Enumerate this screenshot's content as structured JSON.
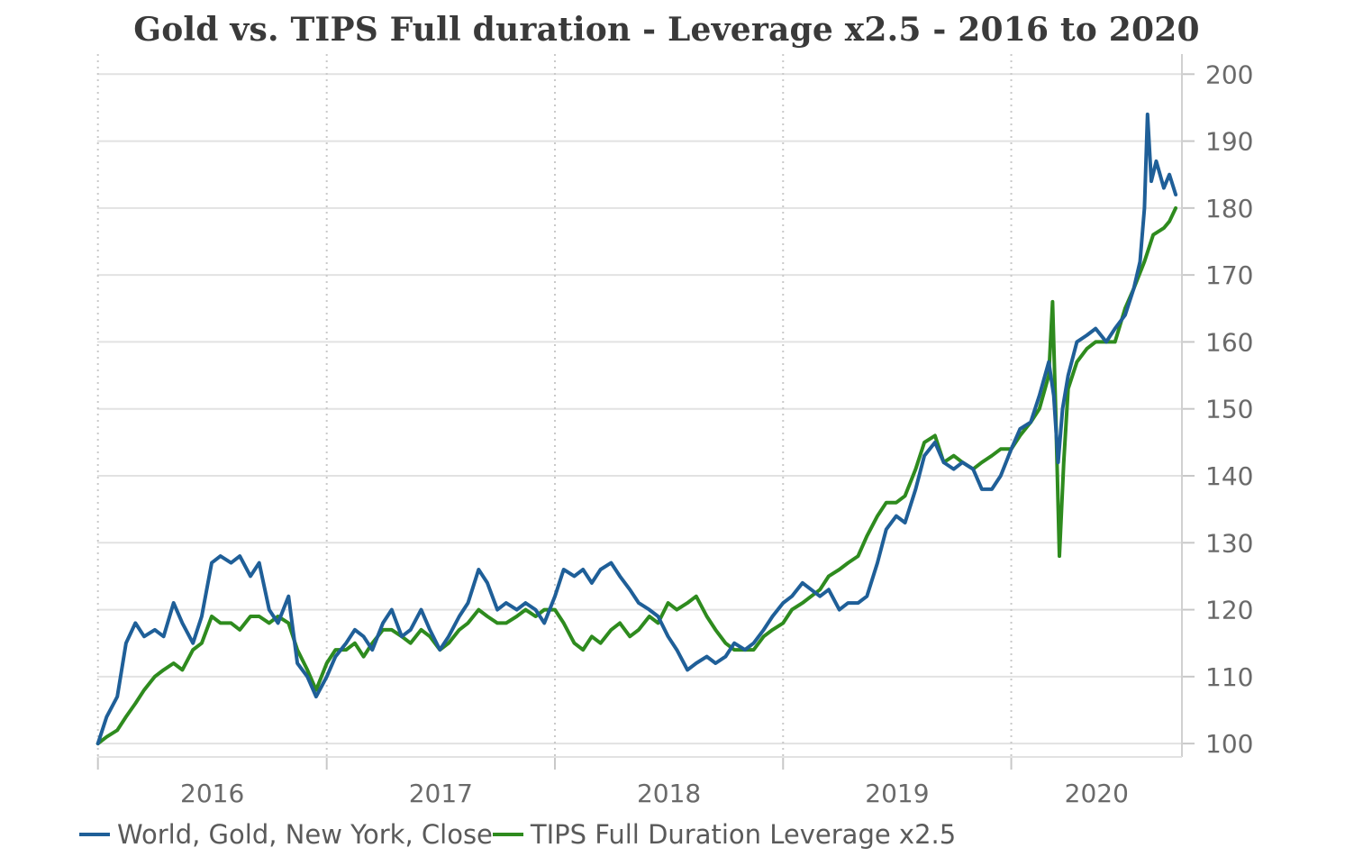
{
  "chart_data": {
    "type": "line",
    "title": "Gold vs. TIPS Full duration - Leverage x2.5 - 2016 to 2020",
    "xlabel": "",
    "ylabel": "",
    "x_tick_labels": [
      "2016",
      "2017",
      "2018",
      "2019",
      "2020"
    ],
    "y_ticks": [
      100,
      110,
      120,
      130,
      140,
      150,
      160,
      170,
      180,
      190,
      200
    ],
    "ylim": [
      98,
      203
    ],
    "xlim": [
      "2015-12-31",
      "2020-09-30"
    ],
    "grid": true,
    "y_axis_side": "right",
    "legend_position": "bottom-left",
    "series": [
      {
        "name": "World, Gold, New York, Close",
        "color": "#1f5f98",
        "points": [
          [
            "2016-01-01",
            100
          ],
          [
            "2016-01-15",
            104
          ],
          [
            "2016-02-01",
            107
          ],
          [
            "2016-02-15",
            115
          ],
          [
            "2016-03-01",
            118
          ],
          [
            "2016-03-15",
            116
          ],
          [
            "2016-04-01",
            117
          ],
          [
            "2016-04-15",
            116
          ],
          [
            "2016-05-01",
            121
          ],
          [
            "2016-05-15",
            118
          ],
          [
            "2016-06-01",
            115
          ],
          [
            "2016-06-15",
            119
          ],
          [
            "2016-07-01",
            127
          ],
          [
            "2016-07-15",
            128
          ],
          [
            "2016-08-01",
            127
          ],
          [
            "2016-08-15",
            128
          ],
          [
            "2016-09-01",
            125
          ],
          [
            "2016-09-15",
            127
          ],
          [
            "2016-10-01",
            120
          ],
          [
            "2016-10-15",
            118
          ],
          [
            "2016-11-01",
            122
          ],
          [
            "2016-11-15",
            112
          ],
          [
            "2016-12-01",
            110
          ],
          [
            "2016-12-15",
            107
          ],
          [
            "2017-01-01",
            110
          ],
          [
            "2017-01-15",
            113
          ],
          [
            "2017-02-01",
            115
          ],
          [
            "2017-02-15",
            117
          ],
          [
            "2017-03-01",
            116
          ],
          [
            "2017-03-15",
            114
          ],
          [
            "2017-04-01",
            118
          ],
          [
            "2017-04-15",
            120
          ],
          [
            "2017-05-01",
            116
          ],
          [
            "2017-05-15",
            117
          ],
          [
            "2017-06-01",
            120
          ],
          [
            "2017-06-15",
            117
          ],
          [
            "2017-07-01",
            114
          ],
          [
            "2017-07-15",
            116
          ],
          [
            "2017-08-01",
            119
          ],
          [
            "2017-08-15",
            121
          ],
          [
            "2017-09-01",
            126
          ],
          [
            "2017-09-15",
            124
          ],
          [
            "2017-10-01",
            120
          ],
          [
            "2017-10-15",
            121
          ],
          [
            "2017-11-01",
            120
          ],
          [
            "2017-11-15",
            121
          ],
          [
            "2017-12-01",
            120
          ],
          [
            "2017-12-15",
            118
          ],
          [
            "2018-01-01",
            122
          ],
          [
            "2018-01-15",
            126
          ],
          [
            "2018-02-01",
            125
          ],
          [
            "2018-02-15",
            126
          ],
          [
            "2018-03-01",
            124
          ],
          [
            "2018-03-15",
            126
          ],
          [
            "2018-04-01",
            127
          ],
          [
            "2018-04-15",
            125
          ],
          [
            "2018-05-01",
            123
          ],
          [
            "2018-05-15",
            121
          ],
          [
            "2018-06-01",
            120
          ],
          [
            "2018-06-15",
            119
          ],
          [
            "2018-07-01",
            116
          ],
          [
            "2018-07-15",
            114
          ],
          [
            "2018-08-01",
            111
          ],
          [
            "2018-08-15",
            112
          ],
          [
            "2018-09-01",
            113
          ],
          [
            "2018-09-15",
            112
          ],
          [
            "2018-10-01",
            113
          ],
          [
            "2018-10-15",
            115
          ],
          [
            "2018-11-01",
            114
          ],
          [
            "2018-11-15",
            115
          ],
          [
            "2018-12-01",
            117
          ],
          [
            "2018-12-15",
            119
          ],
          [
            "2019-01-01",
            121
          ],
          [
            "2019-01-15",
            122
          ],
          [
            "2019-02-01",
            124
          ],
          [
            "2019-02-15",
            123
          ],
          [
            "2019-03-01",
            122
          ],
          [
            "2019-03-15",
            123
          ],
          [
            "2019-04-01",
            120
          ],
          [
            "2019-04-15",
            121
          ],
          [
            "2019-05-01",
            121
          ],
          [
            "2019-05-15",
            122
          ],
          [
            "2019-06-01",
            127
          ],
          [
            "2019-06-15",
            132
          ],
          [
            "2019-07-01",
            134
          ],
          [
            "2019-07-15",
            133
          ],
          [
            "2019-08-01",
            138
          ],
          [
            "2019-08-15",
            143
          ],
          [
            "2019-09-01",
            145
          ],
          [
            "2019-09-15",
            142
          ],
          [
            "2019-10-01",
            141
          ],
          [
            "2019-10-15",
            142
          ],
          [
            "2019-11-01",
            141
          ],
          [
            "2019-11-15",
            138
          ],
          [
            "2019-12-01",
            138
          ],
          [
            "2019-12-15",
            140
          ],
          [
            "2020-01-01",
            144
          ],
          [
            "2020-01-15",
            147
          ],
          [
            "2020-02-01",
            148
          ],
          [
            "2020-02-15",
            152
          ],
          [
            "2020-03-01",
            157
          ],
          [
            "2020-03-09",
            152
          ],
          [
            "2020-03-16",
            142
          ],
          [
            "2020-03-23",
            150
          ],
          [
            "2020-04-01",
            155
          ],
          [
            "2020-04-15",
            160
          ],
          [
            "2020-05-01",
            161
          ],
          [
            "2020-05-15",
            162
          ],
          [
            "2020-06-01",
            160
          ],
          [
            "2020-06-15",
            162
          ],
          [
            "2020-07-01",
            164
          ],
          [
            "2020-07-15",
            168
          ],
          [
            "2020-07-25",
            172
          ],
          [
            "2020-08-01",
            180
          ],
          [
            "2020-08-06",
            194
          ],
          [
            "2020-08-12",
            184
          ],
          [
            "2020-08-20",
            187
          ],
          [
            "2020-09-01",
            183
          ],
          [
            "2020-09-10",
            185
          ],
          [
            "2020-09-20",
            182
          ]
        ]
      },
      {
        "name": "TIPS Full Duration Leverage x2.5",
        "color": "#2e8b1e",
        "points": [
          [
            "2016-01-01",
            100
          ],
          [
            "2016-01-15",
            101
          ],
          [
            "2016-02-01",
            102
          ],
          [
            "2016-02-15",
            104
          ],
          [
            "2016-03-01",
            106
          ],
          [
            "2016-03-15",
            108
          ],
          [
            "2016-04-01",
            110
          ],
          [
            "2016-04-15",
            111
          ],
          [
            "2016-05-01",
            112
          ],
          [
            "2016-05-15",
            111
          ],
          [
            "2016-06-01",
            114
          ],
          [
            "2016-06-15",
            115
          ],
          [
            "2016-07-01",
            119
          ],
          [
            "2016-07-15",
            118
          ],
          [
            "2016-08-01",
            118
          ],
          [
            "2016-08-15",
            117
          ],
          [
            "2016-09-01",
            119
          ],
          [
            "2016-09-15",
            119
          ],
          [
            "2016-10-01",
            118
          ],
          [
            "2016-10-15",
            119
          ],
          [
            "2016-11-01",
            118
          ],
          [
            "2016-11-15",
            114
          ],
          [
            "2016-12-01",
            111
          ],
          [
            "2016-12-15",
            108
          ],
          [
            "2017-01-01",
            112
          ],
          [
            "2017-01-15",
            114
          ],
          [
            "2017-02-01",
            114
          ],
          [
            "2017-02-15",
            115
          ],
          [
            "2017-03-01",
            113
          ],
          [
            "2017-03-15",
            115
          ],
          [
            "2017-04-01",
            117
          ],
          [
            "2017-04-15",
            117
          ],
          [
            "2017-05-01",
            116
          ],
          [
            "2017-05-15",
            115
          ],
          [
            "2017-06-01",
            117
          ],
          [
            "2017-06-15",
            116
          ],
          [
            "2017-07-01",
            114
          ],
          [
            "2017-07-15",
            115
          ],
          [
            "2017-08-01",
            117
          ],
          [
            "2017-08-15",
            118
          ],
          [
            "2017-09-01",
            120
          ],
          [
            "2017-09-15",
            119
          ],
          [
            "2017-10-01",
            118
          ],
          [
            "2017-10-15",
            118
          ],
          [
            "2017-11-01",
            119
          ],
          [
            "2017-11-15",
            120
          ],
          [
            "2017-12-01",
            119
          ],
          [
            "2017-12-15",
            120
          ],
          [
            "2018-01-01",
            120
          ],
          [
            "2018-01-15",
            118
          ],
          [
            "2018-02-01",
            115
          ],
          [
            "2018-02-15",
            114
          ],
          [
            "2018-03-01",
            116
          ],
          [
            "2018-03-15",
            115
          ],
          [
            "2018-04-01",
            117
          ],
          [
            "2018-04-15",
            118
          ],
          [
            "2018-05-01",
            116
          ],
          [
            "2018-05-15",
            117
          ],
          [
            "2018-06-01",
            119
          ],
          [
            "2018-06-15",
            118
          ],
          [
            "2018-07-01",
            121
          ],
          [
            "2018-07-15",
            120
          ],
          [
            "2018-08-01",
            121
          ],
          [
            "2018-08-15",
            122
          ],
          [
            "2018-09-01",
            119
          ],
          [
            "2018-09-15",
            117
          ],
          [
            "2018-10-01",
            115
          ],
          [
            "2018-10-15",
            114
          ],
          [
            "2018-11-01",
            114
          ],
          [
            "2018-11-15",
            114
          ],
          [
            "2018-12-01",
            116
          ],
          [
            "2018-12-15",
            117
          ],
          [
            "2019-01-01",
            118
          ],
          [
            "2019-01-15",
            120
          ],
          [
            "2019-02-01",
            121
          ],
          [
            "2019-02-15",
            122
          ],
          [
            "2019-03-01",
            123
          ],
          [
            "2019-03-15",
            125
          ],
          [
            "2019-04-01",
            126
          ],
          [
            "2019-04-15",
            127
          ],
          [
            "2019-05-01",
            128
          ],
          [
            "2019-05-15",
            131
          ],
          [
            "2019-06-01",
            134
          ],
          [
            "2019-06-15",
            136
          ],
          [
            "2019-07-01",
            136
          ],
          [
            "2019-07-15",
            137
          ],
          [
            "2019-08-01",
            141
          ],
          [
            "2019-08-15",
            145
          ],
          [
            "2019-09-01",
            146
          ],
          [
            "2019-09-15",
            142
          ],
          [
            "2019-10-01",
            143
          ],
          [
            "2019-10-15",
            142
          ],
          [
            "2019-11-01",
            141
          ],
          [
            "2019-11-15",
            142
          ],
          [
            "2019-12-01",
            143
          ],
          [
            "2019-12-15",
            144
          ],
          [
            "2020-01-01",
            144
          ],
          [
            "2020-01-15",
            146
          ],
          [
            "2020-02-01",
            148
          ],
          [
            "2020-02-15",
            150
          ],
          [
            "2020-03-01",
            155
          ],
          [
            "2020-03-07",
            166
          ],
          [
            "2020-03-12",
            150
          ],
          [
            "2020-03-18",
            128
          ],
          [
            "2020-03-25",
            142
          ],
          [
            "2020-04-01",
            153
          ],
          [
            "2020-04-15",
            157
          ],
          [
            "2020-05-01",
            159
          ],
          [
            "2020-05-15",
            160
          ],
          [
            "2020-06-01",
            160
          ],
          [
            "2020-06-15",
            160
          ],
          [
            "2020-07-01",
            165
          ],
          [
            "2020-07-15",
            168
          ],
          [
            "2020-08-01",
            172
          ],
          [
            "2020-08-15",
            176
          ],
          [
            "2020-09-01",
            177
          ],
          [
            "2020-09-10",
            178
          ],
          [
            "2020-09-20",
            180
          ]
        ]
      }
    ]
  }
}
